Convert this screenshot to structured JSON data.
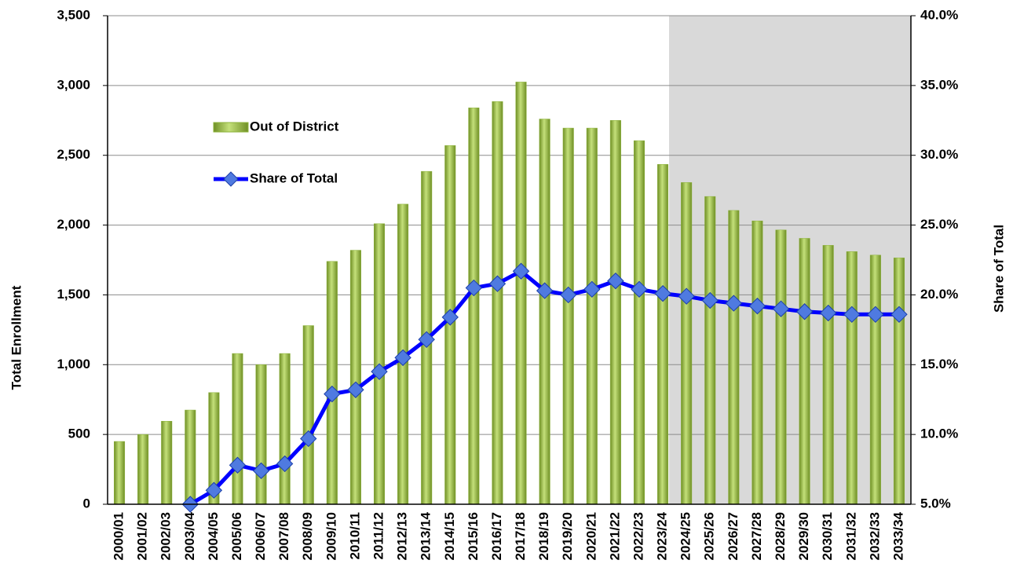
{
  "chart_data": {
    "type": "bar_line",
    "y_label": "Total Enrollment",
    "y2_label": "Share of Total",
    "categories": [
      "2000/01",
      "2001/02",
      "2002/03",
      "2003/04",
      "2004/05",
      "2005/06",
      "2006/07",
      "2007/08",
      "2008/09",
      "2009/10",
      "2010/11",
      "2011/12",
      "2012/13",
      "2013/14",
      "2014/15",
      "2015/16",
      "2016/17",
      "2017/18",
      "2018/19",
      "2019/20",
      "2020/21",
      "2021/22",
      "2022/23",
      "2023/24",
      "2024/25",
      "2025/26",
      "2026/27",
      "2027/28",
      "2028/29",
      "2029/30",
      "2030/31",
      "2031/32",
      "2032/33",
      "2033/34"
    ],
    "series": [
      {
        "name": "Out of District",
        "type": "bar",
        "color": "#8cb33a",
        "values": [
          450,
          500,
          595,
          675,
          800,
          1080,
          1000,
          1080,
          1280,
          1740,
          1820,
          2010,
          2150,
          2385,
          2570,
          2840,
          2885,
          3025,
          2760,
          2695,
          2695,
          2750,
          2605,
          2435,
          2305,
          2205,
          2105,
          2030,
          1965,
          1905,
          1855,
          1810,
          1785,
          1765
        ]
      },
      {
        "name": "Share of Total",
        "type": "line",
        "axis": "y2",
        "color": "#0000ff",
        "values": [
          null,
          null,
          null,
          5.0,
          6.0,
          7.8,
          7.4,
          7.9,
          9.7,
          12.9,
          13.2,
          14.5,
          15.5,
          16.8,
          18.4,
          20.5,
          20.8,
          21.7,
          20.3,
          20.0,
          20.4,
          21.0,
          20.4,
          20.1,
          19.9,
          19.6,
          19.4,
          19.2,
          19.0,
          18.8,
          18.7,
          18.6,
          18.6,
          18.6
        ]
      }
    ],
    "ylim": [
      0,
      3500
    ],
    "yticks": [
      0,
      500,
      {
        "value": 1000,
        "label": "1,000"
      },
      {
        "value": 1500,
        "label": "1,500"
      },
      {
        "value": 2000,
        "label": "2,000"
      },
      {
        "value": 2500,
        "label": "2,500"
      },
      {
        "value": 3000,
        "label": "3,000"
      },
      {
        "value": 3500,
        "label": "3,500"
      }
    ],
    "y2lim": [
      5,
      40
    ],
    "y2ticks": [
      {
        "value": 5,
        "label": "5.0%"
      },
      {
        "value": 10,
        "label": "10.0%"
      },
      {
        "value": 15,
        "label": "15.0%"
      },
      {
        "value": 20,
        "label": "20.0%"
      },
      {
        "value": 25,
        "label": "25.0%"
      },
      {
        "value": 30,
        "label": "30.0%"
      },
      {
        "value": 35,
        "label": "35.0%"
      },
      {
        "value": 40,
        "label": "40.0%"
      }
    ],
    "grid": true,
    "legend": "upper left"
  }
}
